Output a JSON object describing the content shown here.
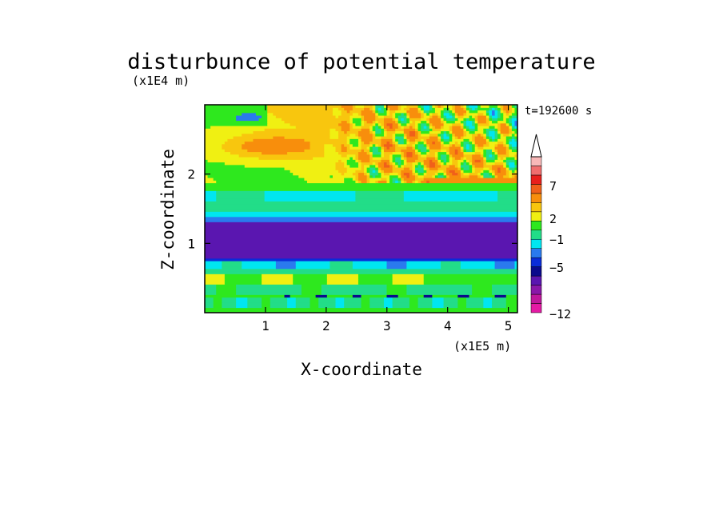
{
  "chart_data": {
    "type": "heatmap",
    "title": "disturbunce of potential temperature",
    "time_label": "t=192600 s",
    "xlabel": "X-coordinate",
    "ylabel": "Z-coordinate",
    "x_unit": "(x1E5 m)",
    "y_unit": "(x1E4 m)",
    "xlim": [
      0,
      5.15
    ],
    "ylim": [
      0,
      3
    ],
    "x_ticks": [
      1,
      2,
      3,
      4,
      5
    ],
    "y_ticks": [
      1,
      2
    ],
    "x_tick_labels": [
      "1",
      "2",
      "3",
      "4",
      "5"
    ],
    "y_tick_labels": [
      "1",
      "2"
    ],
    "colorbar": {
      "levels": [
        -12,
        -10,
        -8,
        -6,
        -5,
        -4,
        -3,
        -2,
        -1,
        0,
        1,
        2,
        3,
        5,
        7,
        9,
        11
      ],
      "colors": [
        "#e41aa4",
        "#c0189c",
        "#8a18a8",
        "#5a16b0",
        "#0a0a8c",
        "#0a2cd8",
        "#2a7aee",
        "#00e6f0",
        "#22dd88",
        "#2ee81e",
        "#f0f012",
        "#f8c60e",
        "#f88e0c",
        "#f0601a",
        "#e8201c",
        "#f06e6e",
        "#f8b8b8"
      ],
      "tick_labels": [
        "7",
        "2",
        "-1",
        "-5",
        "-12"
      ],
      "extend": "max"
    },
    "field_description_layers": [
      {
        "z_range": [
          0,
          0.28
        ],
        "value": 0
      },
      {
        "z_range": [
          0.28,
          0.6
        ],
        "value": 1
      },
      {
        "z_range": [
          0.6,
          0.78
        ],
        "value": -0.5
      },
      {
        "z_range": [
          0.78,
          1.35
        ],
        "value": -5
      },
      {
        "z_range": [
          1.35,
          1.7
        ],
        "value": 0
      },
      {
        "z_range": [
          1.7,
          3.0
        ],
        "value": 2
      }
    ]
  }
}
